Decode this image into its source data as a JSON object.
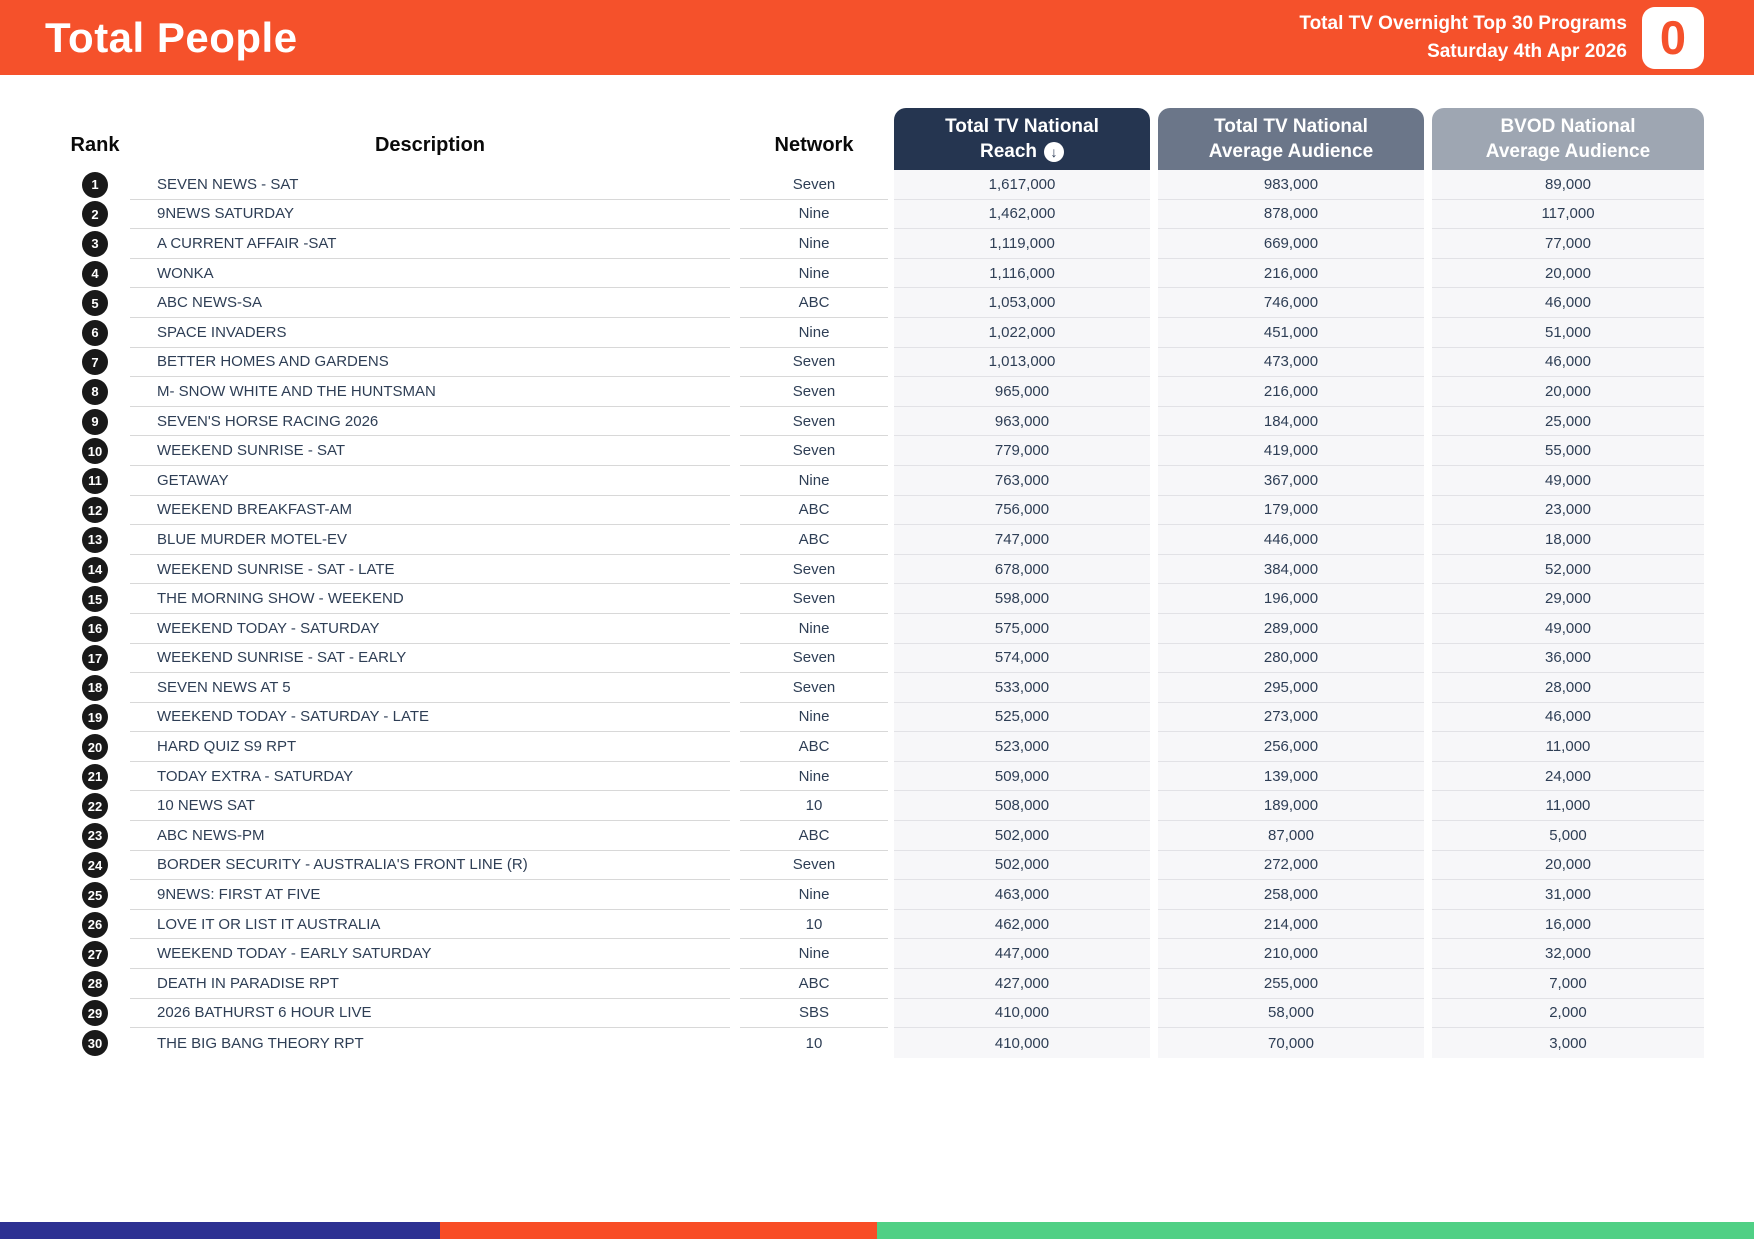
{
  "header": {
    "title": "Total People",
    "report_name": "Total TV Overnight Top 30 Programs",
    "report_date": "Saturday 4th Apr 2026",
    "logo_glyph": "0"
  },
  "colors": {
    "brand_orange": "#F5512B",
    "reach_header": "#253550",
    "avg_header": "#6B7689",
    "bvod_header": "#9EA6B2",
    "footer_blue": "#2D3192",
    "footer_orange": "#F84D26",
    "footer_green": "#50D085",
    "rank_badge": "#191919",
    "cell_text": "#2E3E55",
    "num_cell_bg": "#F7F7F9"
  },
  "table": {
    "columns": {
      "rank": "Rank",
      "description": "Description",
      "network": "Network",
      "reach": {
        "line1": "Total TV National",
        "line2": "Reach",
        "sort": "descending"
      },
      "avg": {
        "line1": "Total TV National",
        "line2": "Average Audience"
      },
      "bvod": {
        "line1": "BVOD National",
        "line2": "Average Audience"
      }
    },
    "rows": [
      {
        "rank": "1",
        "description": "SEVEN NEWS - SAT",
        "network": "Seven",
        "reach": "1,617,000",
        "avg_audience": "983,000",
        "bvod": "89,000"
      },
      {
        "rank": "2",
        "description": "9NEWS SATURDAY",
        "network": "Nine",
        "reach": "1,462,000",
        "avg_audience": "878,000",
        "bvod": "117,000"
      },
      {
        "rank": "3",
        "description": "A CURRENT AFFAIR -SAT",
        "network": "Nine",
        "reach": "1,119,000",
        "avg_audience": "669,000",
        "bvod": "77,000"
      },
      {
        "rank": "4",
        "description": "WONKA",
        "network": "Nine",
        "reach": "1,116,000",
        "avg_audience": "216,000",
        "bvod": "20,000"
      },
      {
        "rank": "5",
        "description": "ABC NEWS-SA",
        "network": "ABC",
        "reach": "1,053,000",
        "avg_audience": "746,000",
        "bvod": "46,000"
      },
      {
        "rank": "6",
        "description": "SPACE INVADERS",
        "network": "Nine",
        "reach": "1,022,000",
        "avg_audience": "451,000",
        "bvod": "51,000"
      },
      {
        "rank": "7",
        "description": "BETTER HOMES AND GARDENS",
        "network": "Seven",
        "reach": "1,013,000",
        "avg_audience": "473,000",
        "bvod": "46,000"
      },
      {
        "rank": "8",
        "description": "M- SNOW WHITE AND THE HUNTSMAN",
        "network": "Seven",
        "reach": "965,000",
        "avg_audience": "216,000",
        "bvod": "20,000"
      },
      {
        "rank": "9",
        "description": "SEVEN'S HORSE RACING 2026",
        "network": "Seven",
        "reach": "963,000",
        "avg_audience": "184,000",
        "bvod": "25,000"
      },
      {
        "rank": "10",
        "description": "WEEKEND SUNRISE - SAT",
        "network": "Seven",
        "reach": "779,000",
        "avg_audience": "419,000",
        "bvod": "55,000"
      },
      {
        "rank": "11",
        "description": "GETAWAY",
        "network": "Nine",
        "reach": "763,000",
        "avg_audience": "367,000",
        "bvod": "49,000"
      },
      {
        "rank": "12",
        "description": "WEEKEND BREAKFAST-AM",
        "network": "ABC",
        "reach": "756,000",
        "avg_audience": "179,000",
        "bvod": "23,000"
      },
      {
        "rank": "13",
        "description": "BLUE MURDER MOTEL-EV",
        "network": "ABC",
        "reach": "747,000",
        "avg_audience": "446,000",
        "bvod": "18,000"
      },
      {
        "rank": "14",
        "description": "WEEKEND SUNRISE - SAT - LATE",
        "network": "Seven",
        "reach": "678,000",
        "avg_audience": "384,000",
        "bvod": "52,000"
      },
      {
        "rank": "15",
        "description": "THE MORNING SHOW - WEEKEND",
        "network": "Seven",
        "reach": "598,000",
        "avg_audience": "196,000",
        "bvod": "29,000"
      },
      {
        "rank": "16",
        "description": "WEEKEND TODAY - SATURDAY",
        "network": "Nine",
        "reach": "575,000",
        "avg_audience": "289,000",
        "bvod": "49,000"
      },
      {
        "rank": "17",
        "description": "WEEKEND SUNRISE - SAT - EARLY",
        "network": "Seven",
        "reach": "574,000",
        "avg_audience": "280,000",
        "bvod": "36,000"
      },
      {
        "rank": "18",
        "description": "SEVEN NEWS AT 5",
        "network": "Seven",
        "reach": "533,000",
        "avg_audience": "295,000",
        "bvod": "28,000"
      },
      {
        "rank": "19",
        "description": "WEEKEND TODAY - SATURDAY - LATE",
        "network": "Nine",
        "reach": "525,000",
        "avg_audience": "273,000",
        "bvod": "46,000"
      },
      {
        "rank": "20",
        "description": "HARD QUIZ S9 RPT",
        "network": "ABC",
        "reach": "523,000",
        "avg_audience": "256,000",
        "bvod": "11,000"
      },
      {
        "rank": "21",
        "description": "TODAY EXTRA - SATURDAY",
        "network": "Nine",
        "reach": "509,000",
        "avg_audience": "139,000",
        "bvod": "24,000"
      },
      {
        "rank": "22",
        "description": "10 NEWS SAT",
        "network": "10",
        "reach": "508,000",
        "avg_audience": "189,000",
        "bvod": "11,000"
      },
      {
        "rank": "23",
        "description": "ABC NEWS-PM",
        "network": "ABC",
        "reach": "502,000",
        "avg_audience": "87,000",
        "bvod": "5,000"
      },
      {
        "rank": "24",
        "description": "BORDER SECURITY - AUSTRALIA'S FRONT LINE (R)",
        "network": "Seven",
        "reach": "502,000",
        "avg_audience": "272,000",
        "bvod": "20,000"
      },
      {
        "rank": "25",
        "description": "9NEWS: FIRST AT FIVE",
        "network": "Nine",
        "reach": "463,000",
        "avg_audience": "258,000",
        "bvod": "31,000"
      },
      {
        "rank": "26",
        "description": "LOVE IT OR LIST IT AUSTRALIA",
        "network": "10",
        "reach": "462,000",
        "avg_audience": "214,000",
        "bvod": "16,000"
      },
      {
        "rank": "27",
        "description": "WEEKEND TODAY - EARLY SATURDAY",
        "network": "Nine",
        "reach": "447,000",
        "avg_audience": "210,000",
        "bvod": "32,000"
      },
      {
        "rank": "28",
        "description": "DEATH IN PARADISE RPT",
        "network": "ABC",
        "reach": "427,000",
        "avg_audience": "255,000",
        "bvod": "7,000"
      },
      {
        "rank": "29",
        "description": "2026 BATHURST 6 HOUR LIVE",
        "network": "SBS",
        "reach": "410,000",
        "avg_audience": "58,000",
        "bvod": "2,000"
      },
      {
        "rank": "30",
        "description": "THE BIG BANG THEORY RPT",
        "network": "10",
        "reach": "410,000",
        "avg_audience": "70,000",
        "bvod": "3,000"
      }
    ]
  },
  "sort_icon_glyph": "↓"
}
